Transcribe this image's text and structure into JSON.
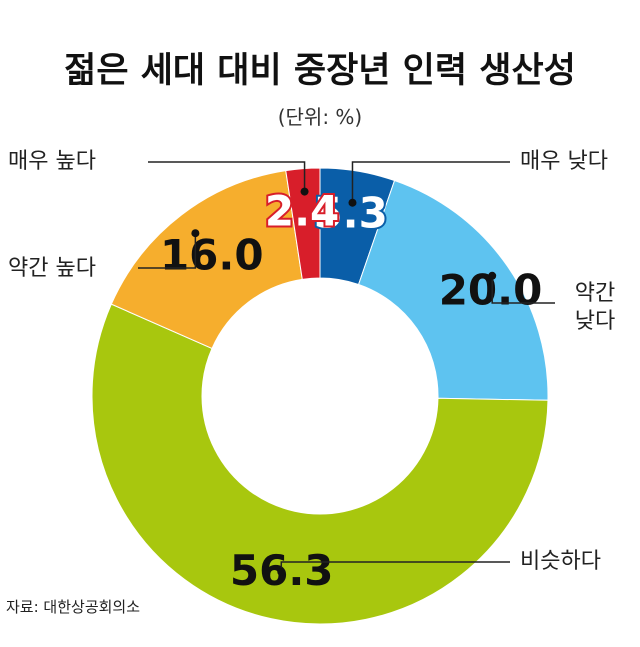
{
  "title": "젊은 세대 대비 중장년 인력 생산성",
  "unit": "(단위: %)",
  "source": "자료: 대한상공회의소",
  "chart_data": {
    "type": "pie",
    "title": "젊은 세대 대비 중장년 인력 생산성",
    "subtitle": "(단위: %)",
    "slices": [
      {
        "label": "매우 낮다",
        "value": 5.3,
        "color": "#0a5ea8"
      },
      {
        "label": "약간 낮다",
        "value": 20.0,
        "color": "#5ec3f0"
      },
      {
        "label": "비슷하다",
        "value": 56.3,
        "color": "#a8c70e"
      },
      {
        "label": "약간 높다",
        "value": 16.0,
        "color": "#f6ae2d"
      },
      {
        "label": "매우 높다",
        "value": 2.4,
        "color": "#d81e2a"
      }
    ]
  }
}
